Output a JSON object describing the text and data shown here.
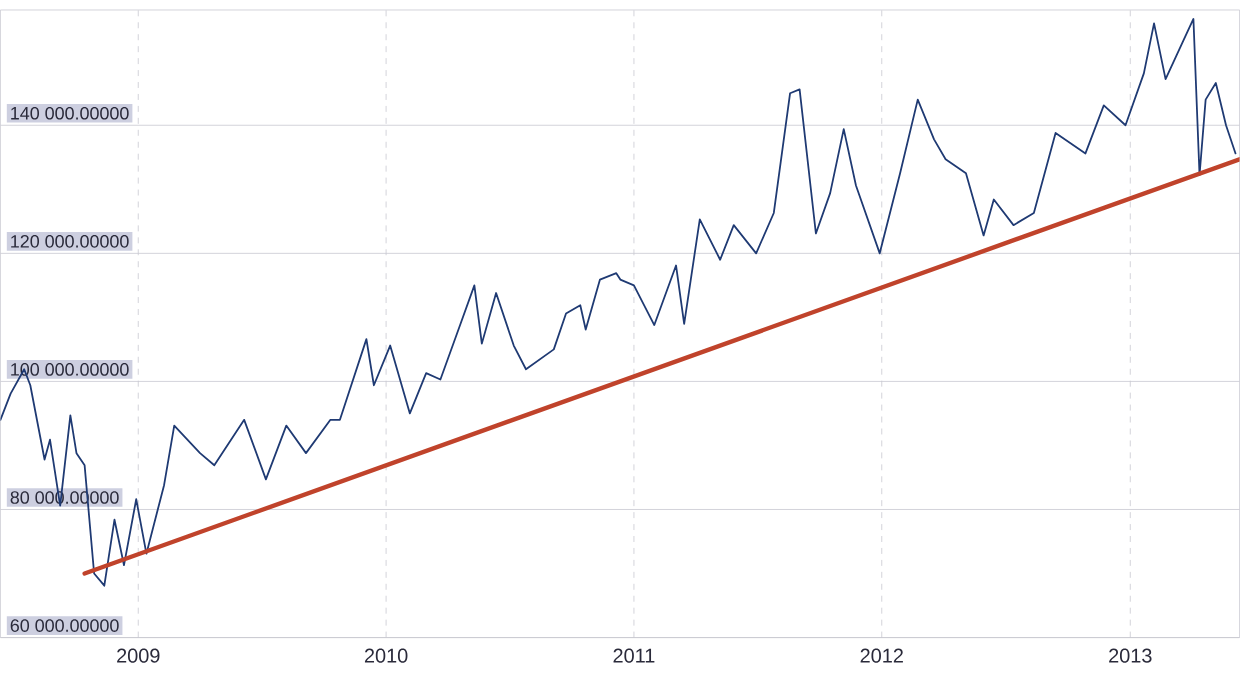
{
  "chart_data": {
    "type": "line",
    "xlim": [
      "2008-06-12",
      "2013-06-11"
    ],
    "ylim": [
      60000,
      158000
    ],
    "xticks": [
      {
        "value": "2009-01-01",
        "label": "2009"
      },
      {
        "value": "2010-01-01",
        "label": "2010"
      },
      {
        "value": "2011-01-01",
        "label": "2011"
      },
      {
        "value": "2012-01-01",
        "label": "2012"
      },
      {
        "value": "2013-01-01",
        "label": "2013"
      }
    ],
    "yticks": [
      {
        "value": 60000,
        "label": "60 000.00000"
      },
      {
        "value": 80000,
        "label": "80 000.00000"
      },
      {
        "value": 100000,
        "label": "100 000.00000"
      },
      {
        "value": 120000,
        "label": "120 000.00000"
      },
      {
        "value": 140000,
        "label": "140 000.00000"
      }
    ],
    "grid": true,
    "series": [
      {
        "color": "#1f3a73",
        "x": [
          "2008-06-12",
          "2008-06-27",
          "2008-07-17",
          "2008-07-26",
          "2008-08-16",
          "2008-08-24",
          "2008-09-08",
          "2008-09-23",
          "2008-10-02",
          "2008-10-14",
          "2008-10-28",
          "2008-11-12",
          "2008-11-27",
          "2008-12-11",
          "2008-12-29",
          "2009-01-13",
          "2009-02-08",
          "2009-02-23",
          "2009-04-02",
          "2009-04-23",
          "2009-06-06",
          "2009-07-08",
          "2009-08-07",
          "2009-09-05",
          "2009-10-11",
          "2009-10-25",
          "2009-12-03",
          "2009-12-14",
          "2010-01-07",
          "2010-02-05",
          "2010-03-01",
          "2010-03-22",
          "2010-04-20",
          "2010-05-11",
          "2010-05-22",
          "2010-06-12",
          "2010-07-08",
          "2010-07-26",
          "2010-09-05",
          "2010-09-23",
          "2010-10-14",
          "2010-10-22",
          "2010-11-12",
          "2010-12-06",
          "2010-12-12",
          "2011-01-01",
          "2011-01-31",
          "2011-03-04",
          "2011-03-16",
          "2011-04-08",
          "2011-05-08",
          "2011-05-28",
          "2011-06-30",
          "2011-07-26",
          "2011-08-19",
          "2011-09-02",
          "2011-09-26",
          "2011-10-17",
          "2011-11-06",
          "2011-11-24",
          "2011-12-29",
          "2012-01-28",
          "2012-02-23",
          "2012-03-18",
          "2012-04-04",
          "2012-05-04",
          "2012-05-30",
          "2012-06-14",
          "2012-07-13",
          "2012-08-12",
          "2012-09-13",
          "2012-10-27",
          "2012-11-23",
          "2012-12-25",
          "2013-01-21",
          "2013-02-05",
          "2013-02-22",
          "2013-03-21",
          "2013-04-04",
          "2013-04-13",
          "2013-04-22",
          "2013-05-07",
          "2013-05-22",
          "2013-06-05"
        ],
        "values": [
          94000,
          98100,
          101900,
          99400,
          87800,
          90900,
          80600,
          94700,
          88800,
          86900,
          70000,
          68100,
          78400,
          71300,
          81600,
          73100,
          83800,
          93100,
          88800,
          86900,
          94000,
          84700,
          93100,
          88800,
          94000,
          94000,
          106600,
          99400,
          105600,
          95000,
          101300,
          100300,
          108800,
          115000,
          105900,
          113800,
          105600,
          101900,
          105000,
          110600,
          111900,
          108100,
          115900,
          116900,
          115900,
          115000,
          108800,
          118100,
          109000,
          125300,
          119000,
          124400,
          120000,
          126300,
          145000,
          145600,
          123100,
          129400,
          139400,
          130600,
          120000,
          132500,
          144000,
          137800,
          134700,
          132500,
          122800,
          128400,
          124400,
          126300,
          138800,
          135600,
          143100,
          140000,
          148100,
          155900,
          147200,
          153400,
          156600,
          132200,
          144000,
          146600,
          140000,
          135600
        ]
      },
      {
        "type": "line",
        "color": "#c0432b",
        "x": [
          "2008-10-14",
          "2013-06-11"
        ],
        "values": [
          70000,
          134700
        ]
      }
    ]
  }
}
